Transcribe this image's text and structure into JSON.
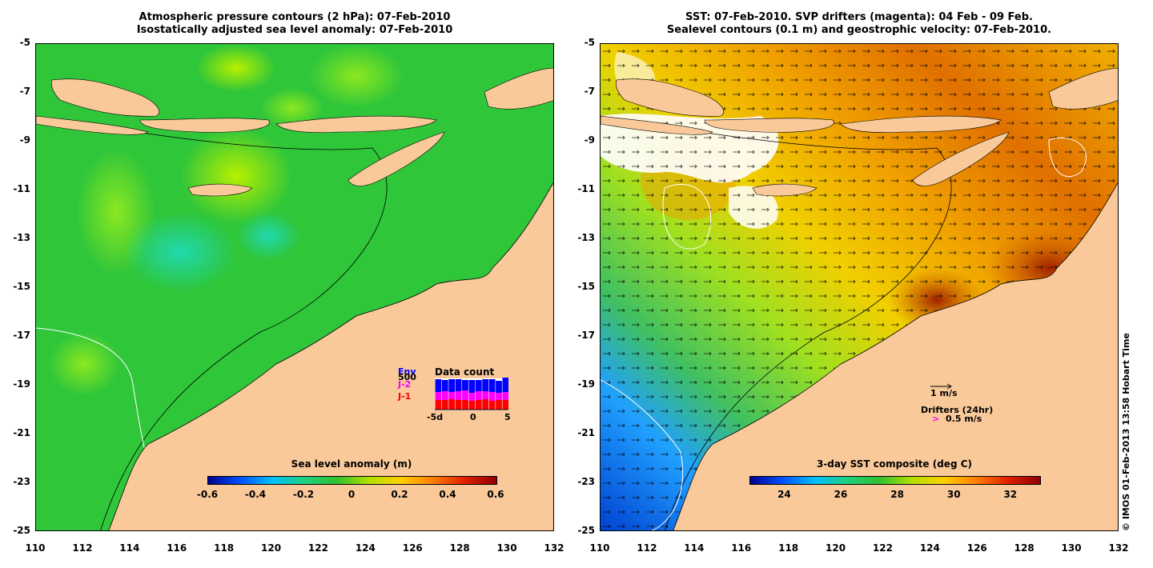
{
  "left_panel": {
    "title_line1": "Atmospheric pressure contours (2 hPa): 07-Feb-2010",
    "title_line2": "Isostatically adjusted sea level anomaly: 07-Feb-2010",
    "colorbar": {
      "title": "Sea level anomaly (m)",
      "ticks": [
        "-0.6",
        "-0.4",
        "-0.2",
        "0",
        "0.2",
        "0.4",
        "0.6"
      ]
    },
    "inset": {
      "title": "Data count",
      "count_label": "500",
      "sat_env": "Env",
      "sat_j2": "J-2",
      "sat_j1": "J-1",
      "x_ticks": [
        "-5d",
        "0",
        "5"
      ],
      "colors": {
        "env": "#0000ff",
        "j2": "#ff00ff",
        "j1": "#ff0000"
      }
    }
  },
  "right_panel": {
    "title_line1": "SST: 07-Feb-2010. SVP drifters (magenta): 04 Feb - 09 Feb.",
    "title_line2": "Sealevel contours (0.1 m) and geostrophic velocity: 07-Feb-2010.",
    "colorbar": {
      "title": "3-day SST composite (deg C)",
      "ticks": [
        "24",
        "26",
        "28",
        "30",
        "32"
      ]
    },
    "legend_arrow_label": "1 m/s",
    "legend_drifters_title": "Drifters (24hr)",
    "legend_drifters_value": "0.5 m/s",
    "legend_drifter_marker": ">"
  },
  "axes": {
    "y_ticks": [
      "-5",
      "-7",
      "-9",
      "-11",
      "-13",
      "-15",
      "-17",
      "-19",
      "-21",
      "-23",
      "-25"
    ],
    "x_ticks": [
      "110",
      "112",
      "114",
      "116",
      "118",
      "120",
      "122",
      "124",
      "126",
      "128",
      "130",
      "132"
    ]
  },
  "credit": "© IMOS 01-Feb-2013 13:58 Hobart Time",
  "colors": {
    "land": "#f9c99a",
    "ocean_left": "#2fc63a",
    "ocean_right": "#f0c010"
  }
}
